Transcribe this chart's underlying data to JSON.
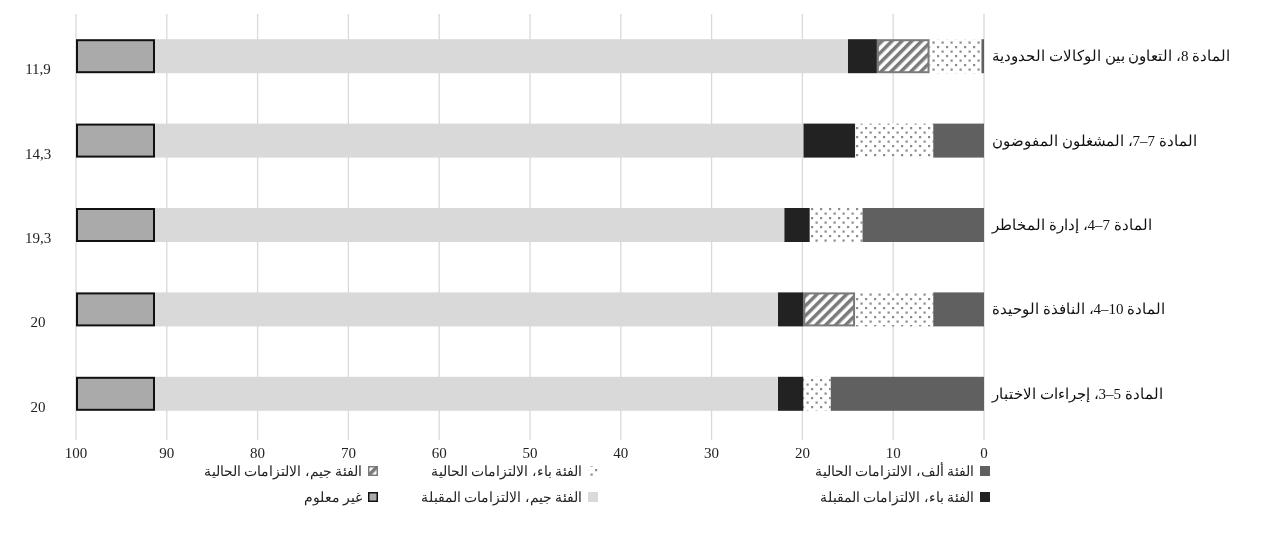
{
  "chart_data": {
    "type": "bar",
    "orientation": "horizontal",
    "stacked": true,
    "categories": [
      "المادة 8، التعاون بين الوكالات الحدودية",
      "المادة 7–7، المشغلون المفوضون",
      "المادة 7–4، إدارة المخاطر",
      "المادة 10–4، النافذة الوحيدة",
      "المادة 5–3، إجراءات الاختبار"
    ],
    "series": [
      {
        "name": "الفئة ألف، الالتزامات الحالية",
        "color": "#606060",
        "values": [
          0.3,
          5.6,
          13.4,
          5.6,
          16.9
        ]
      },
      {
        "name": "الفئة باء، الالتزامات الحالية",
        "color": "#8c8c8c",
        "values": [
          5.7,
          8.6,
          5.8,
          8.6,
          3.0
        ]
      },
      {
        "name": "الفئة جيم، الالتزامات الحالية",
        "color": "#7a7a7a",
        "values": [
          5.8,
          null,
          null,
          5.7,
          null
        ]
      },
      {
        "name": "الفئة باء، الالتزامات المقبلة",
        "color": "#222222",
        "values": [
          3.2,
          5.7,
          2.8,
          2.8,
          2.8
        ]
      },
      {
        "name": "الفئة جيم، الالتزامات المقبلة",
        "color": "#d9d9d9",
        "values": [
          76.3,
          71.4,
          69.3,
          68.6,
          68.6
        ]
      },
      {
        "name": "غير معلوم",
        "color": "#aaaaaa",
        "values": [
          8.7,
          8.7,
          8.7,
          8.7,
          8.7
        ]
      }
    ],
    "xlim": [
      100,
      0
    ],
    "xticks": [
      0,
      10,
      20,
      30,
      40,
      50,
      60,
      70,
      80,
      90,
      100
    ],
    "grid": "x",
    "legend": "bottom",
    "annotations": [
      "11,9",
      "14,3",
      "19,3",
      "20",
      "20"
    ]
  }
}
